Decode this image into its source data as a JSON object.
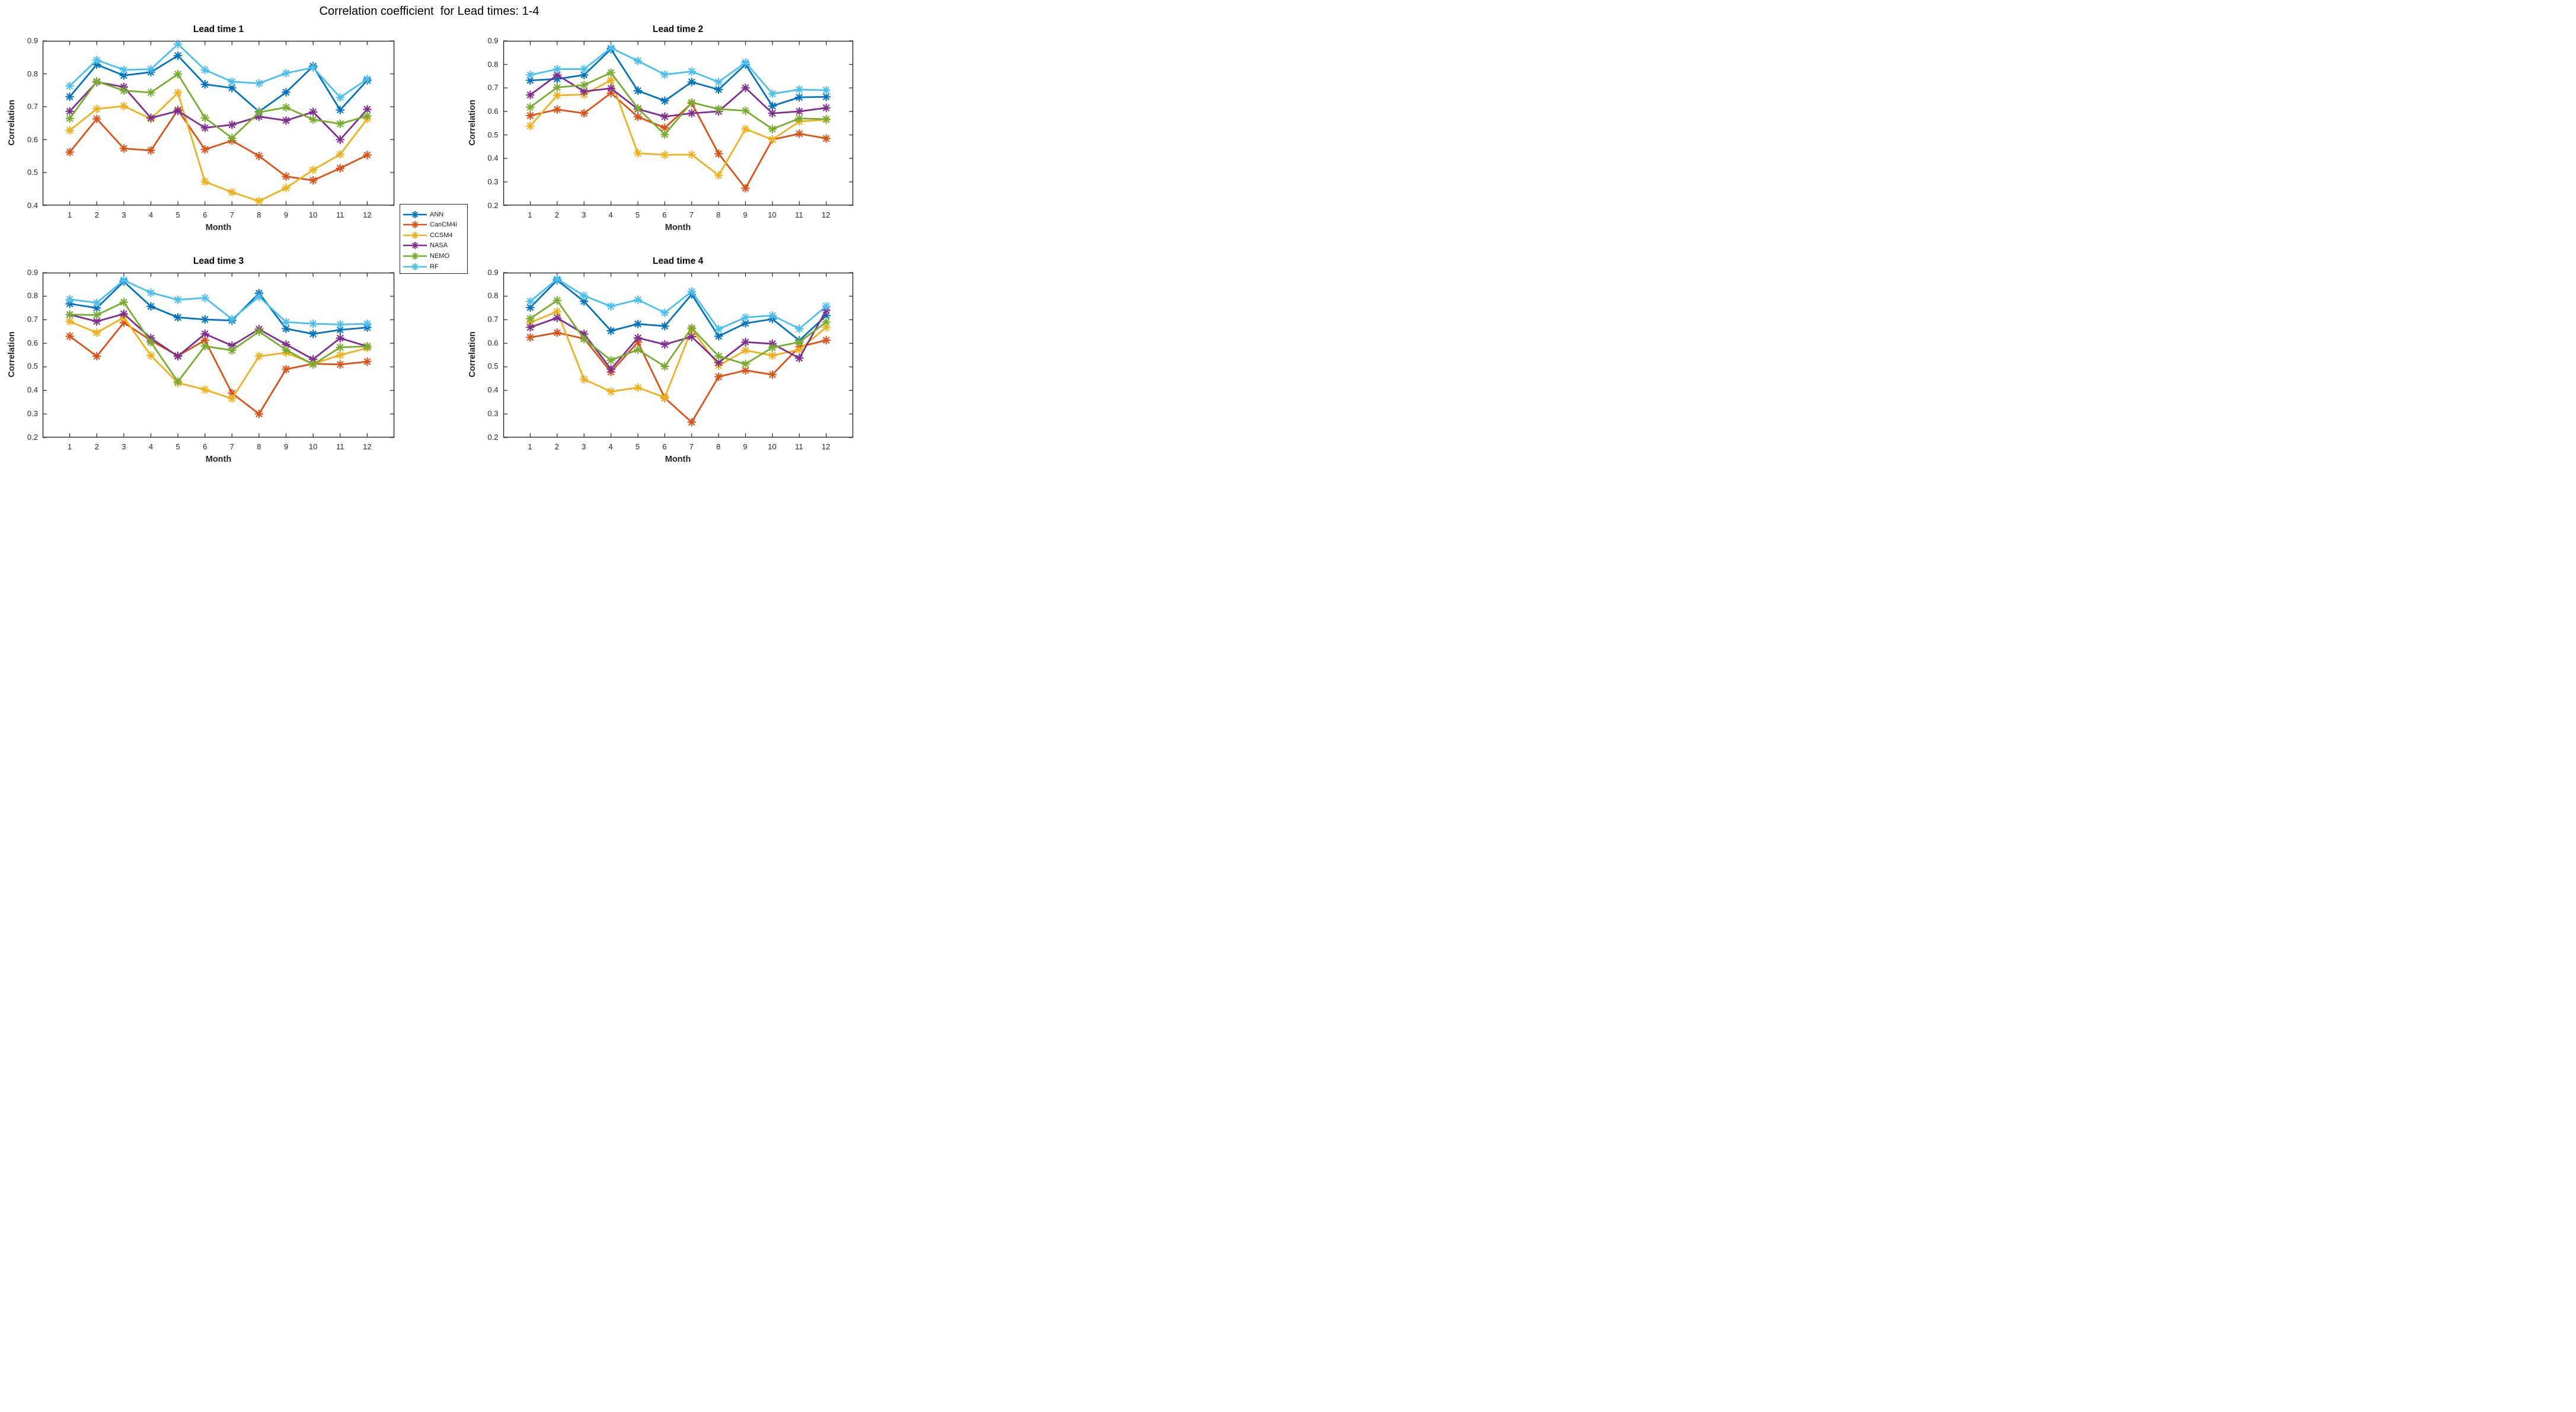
{
  "title": "Correlation coefficient  for Lead times: 1-4",
  "legend": {
    "items": [
      {
        "label": "ANN",
        "color": "#0072BD"
      },
      {
        "label": "CanCM4i",
        "color": "#D95319"
      },
      {
        "label": "CCSM4",
        "color": "#EDB120"
      },
      {
        "label": "NASA",
        "color": "#7E2F8E"
      },
      {
        "label": "NEMO",
        "color": "#77AC30"
      },
      {
        "label": "RF",
        "color": "#4DBEEE"
      }
    ]
  },
  "chart_data": [
    {
      "type": "line",
      "title": "Lead time 1",
      "xlabel": "Month",
      "ylabel": "Correlation",
      "x": [
        1,
        2,
        3,
        4,
        5,
        6,
        7,
        8,
        9,
        10,
        11,
        12
      ],
      "xlim": [
        0,
        13
      ],
      "ylim": [
        0.4,
        0.9
      ],
      "yticks": [
        0.4,
        0.5,
        0.6,
        0.7,
        0.8,
        0.9
      ],
      "grid": false,
      "series": [
        {
          "name": "ANN",
          "color": "#0072BD",
          "values": [
            0.73,
            0.828,
            0.795,
            0.805,
            0.855,
            0.768,
            0.757,
            0.685,
            0.744,
            0.823,
            0.69,
            0.78
          ]
        },
        {
          "name": "CanCM4i",
          "color": "#D95319",
          "values": [
            0.562,
            0.663,
            0.573,
            0.567,
            0.69,
            0.57,
            0.597,
            0.55,
            0.488,
            0.476,
            0.513,
            0.553
          ]
        },
        {
          "name": "CCSM4",
          "color": "#EDB120",
          "values": [
            0.628,
            0.693,
            0.702,
            0.663,
            0.742,
            0.472,
            0.44,
            0.413,
            0.453,
            0.508,
            0.555,
            0.663
          ]
        },
        {
          "name": "NASA",
          "color": "#7E2F8E",
          "values": [
            0.686,
            0.775,
            0.76,
            0.666,
            0.687,
            0.636,
            0.645,
            0.67,
            0.658,
            0.684,
            0.6,
            0.692
          ]
        },
        {
          "name": "NEMO",
          "color": "#77AC30",
          "values": [
            0.664,
            0.777,
            0.749,
            0.743,
            0.799,
            0.666,
            0.605,
            0.683,
            0.698,
            0.661,
            0.648,
            0.672
          ]
        },
        {
          "name": "RF",
          "color": "#4DBEEE",
          "values": [
            0.763,
            0.842,
            0.812,
            0.814,
            0.89,
            0.812,
            0.776,
            0.771,
            0.802,
            0.819,
            0.728,
            0.784
          ]
        }
      ]
    },
    {
      "type": "line",
      "title": "Lead time 2",
      "xlabel": "Month",
      "ylabel": "Correlation",
      "x": [
        1,
        2,
        3,
        4,
        5,
        6,
        7,
        8,
        9,
        10,
        11,
        12
      ],
      "xlim": [
        0,
        13
      ],
      "ylim": [
        0.2,
        0.9
      ],
      "yticks": [
        0.2,
        0.3,
        0.4,
        0.5,
        0.6,
        0.7,
        0.8,
        0.9
      ],
      "grid": false,
      "series": [
        {
          "name": "ANN",
          "color": "#0072BD",
          "values": [
            0.732,
            0.738,
            0.755,
            0.865,
            0.688,
            0.645,
            0.725,
            0.693,
            0.8,
            0.623,
            0.66,
            0.662
          ]
        },
        {
          "name": "CanCM4i",
          "color": "#D95319",
          "values": [
            0.582,
            0.608,
            0.592,
            0.678,
            0.577,
            0.53,
            0.635,
            0.42,
            0.273,
            0.48,
            0.505,
            0.485
          ]
        },
        {
          "name": "CCSM4",
          "color": "#EDB120",
          "values": [
            0.538,
            0.668,
            0.672,
            0.733,
            0.422,
            0.415,
            0.416,
            0.328,
            0.525,
            0.48,
            0.557,
            0.565
          ]
        },
        {
          "name": "NASA",
          "color": "#7E2F8E",
          "values": [
            0.67,
            0.755,
            0.685,
            0.698,
            0.61,
            0.578,
            0.592,
            0.6,
            0.7,
            0.592,
            0.6,
            0.615
          ]
        },
        {
          "name": "NEMO",
          "color": "#77AC30",
          "values": [
            0.618,
            0.702,
            0.712,
            0.765,
            0.613,
            0.502,
            0.638,
            0.61,
            0.603,
            0.525,
            0.57,
            0.567
          ]
        },
        {
          "name": "RF",
          "color": "#4DBEEE",
          "values": [
            0.755,
            0.78,
            0.78,
            0.87,
            0.815,
            0.757,
            0.77,
            0.725,
            0.808,
            0.675,
            0.693,
            0.69
          ]
        }
      ]
    },
    {
      "type": "line",
      "title": "Lead time 3",
      "xlabel": "Month",
      "ylabel": "Correlation",
      "x": [
        1,
        2,
        3,
        4,
        5,
        6,
        7,
        8,
        9,
        10,
        11,
        12
      ],
      "xlim": [
        0,
        13
      ],
      "ylim": [
        0.2,
        0.9
      ],
      "yticks": [
        0.2,
        0.3,
        0.4,
        0.5,
        0.6,
        0.7,
        0.8,
        0.9
      ],
      "grid": false,
      "series": [
        {
          "name": "ANN",
          "color": "#0072BD",
          "values": [
            0.768,
            0.75,
            0.862,
            0.757,
            0.71,
            0.701,
            0.697,
            0.813,
            0.662,
            0.64,
            0.657,
            0.667
          ]
        },
        {
          "name": "CanCM4i",
          "color": "#D95319",
          "values": [
            0.63,
            0.545,
            0.688,
            0.612,
            0.547,
            0.613,
            0.388,
            0.3,
            0.49,
            0.513,
            0.51,
            0.522
          ]
        },
        {
          "name": "CCSM4",
          "color": "#EDB120",
          "values": [
            0.693,
            0.645,
            0.71,
            0.548,
            0.432,
            0.403,
            0.365,
            0.545,
            0.56,
            0.513,
            0.55,
            0.58
          ]
        },
        {
          "name": "NASA",
          "color": "#7E2F8E",
          "values": [
            0.722,
            0.693,
            0.725,
            0.622,
            0.545,
            0.64,
            0.59,
            0.66,
            0.595,
            0.532,
            0.622,
            0.587
          ]
        },
        {
          "name": "NEMO",
          "color": "#77AC30",
          "values": [
            0.722,
            0.72,
            0.775,
            0.605,
            0.437,
            0.588,
            0.57,
            0.65,
            0.572,
            0.51,
            0.583,
            0.587
          ]
        },
        {
          "name": "RF",
          "color": "#4DBEEE",
          "values": [
            0.787,
            0.772,
            0.868,
            0.815,
            0.785,
            0.793,
            0.703,
            0.798,
            0.69,
            0.683,
            0.68,
            0.683
          ]
        }
      ]
    },
    {
      "type": "line",
      "title": "Lead time 4",
      "xlabel": "Month",
      "ylabel": "Correlation",
      "x": [
        1,
        2,
        3,
        4,
        5,
        6,
        7,
        8,
        9,
        10,
        11,
        12
      ],
      "xlim": [
        0,
        13
      ],
      "ylim": [
        0.2,
        0.9
      ],
      "yticks": [
        0.2,
        0.3,
        0.4,
        0.5,
        0.6,
        0.7,
        0.8,
        0.9
      ],
      "grid": false,
      "series": [
        {
          "name": "ANN",
          "color": "#0072BD",
          "values": [
            0.752,
            0.868,
            0.778,
            0.653,
            0.682,
            0.673,
            0.808,
            0.63,
            0.685,
            0.703,
            0.612,
            0.718
          ]
        },
        {
          "name": "CanCM4i",
          "color": "#D95319",
          "values": [
            0.625,
            0.645,
            0.62,
            0.478,
            0.605,
            0.368,
            0.265,
            0.458,
            0.485,
            0.467,
            0.585,
            0.613
          ]
        },
        {
          "name": "CCSM4",
          "color": "#EDB120",
          "values": [
            0.688,
            0.735,
            0.447,
            0.395,
            0.412,
            0.37,
            0.66,
            0.505,
            0.57,
            0.548,
            0.573,
            0.668
          ]
        },
        {
          "name": "NASA",
          "color": "#7E2F8E",
          "values": [
            0.668,
            0.708,
            0.64,
            0.49,
            0.623,
            0.595,
            0.628,
            0.518,
            0.605,
            0.598,
            0.537,
            0.74
          ]
        },
        {
          "name": "NEMO",
          "color": "#77AC30",
          "values": [
            0.705,
            0.782,
            0.618,
            0.528,
            0.573,
            0.502,
            0.665,
            0.545,
            0.512,
            0.582,
            0.605,
            0.69
          ]
        },
        {
          "name": "RF",
          "color": "#4DBEEE",
          "values": [
            0.778,
            0.873,
            0.802,
            0.757,
            0.785,
            0.73,
            0.82,
            0.66,
            0.71,
            0.718,
            0.662,
            0.758
          ]
        }
      ]
    }
  ]
}
